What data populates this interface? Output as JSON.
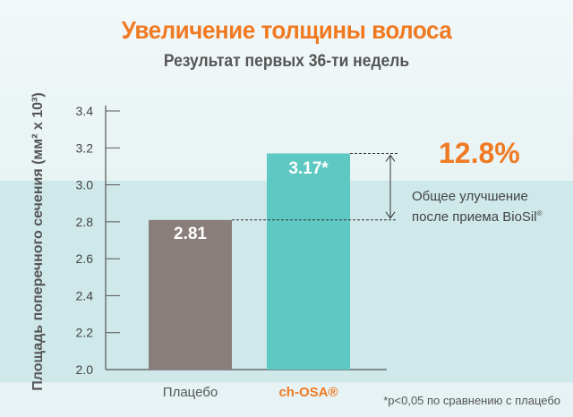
{
  "chart_data": {
    "type": "bar",
    "title": "Увеличение толщины волоса",
    "subtitle": "Результат первых 36-ти недель",
    "ylabel": "Площадь поперечного сечения (мм² x 10³)",
    "ylim": [
      2.0,
      3.4
    ],
    "yticks": [
      "2.0",
      "2.2",
      "2.4",
      "2.6",
      "2.8",
      "3.0",
      "3.2",
      "3.4"
    ],
    "categories": [
      "Плацебо",
      "ch-OSA®"
    ],
    "values": [
      2.81,
      3.17
    ],
    "data_labels": [
      "2.81",
      "3.17*"
    ],
    "colors": [
      "#8a7e7b",
      "#5ec8c2"
    ],
    "category_colors": [
      "#555555",
      "#f07a22"
    ],
    "annotation": {
      "percent": "12.8%",
      "line1": "Общее улучшение",
      "line2": "после приема BioSil",
      "reg": "®"
    },
    "footnote": "*p<0,05 по сравнению с плацебо"
  }
}
